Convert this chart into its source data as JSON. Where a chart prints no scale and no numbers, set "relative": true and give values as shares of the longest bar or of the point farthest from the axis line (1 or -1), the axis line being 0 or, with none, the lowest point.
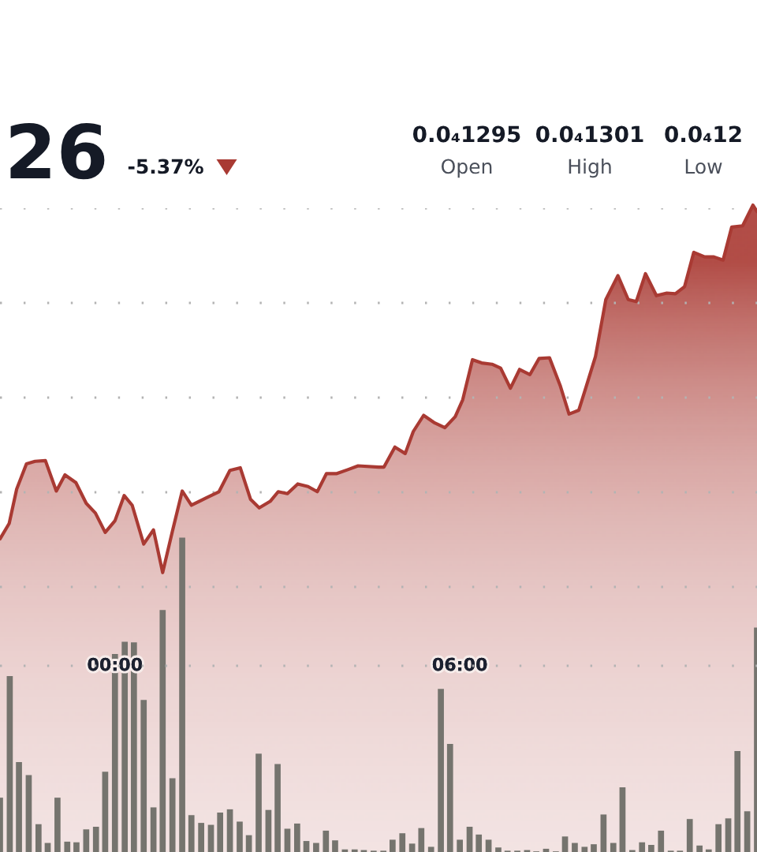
{
  "chart_data": {
    "type": "area",
    "relative": true,
    "xlim": [
      -2,
      11.17
    ],
    "xticks": [
      {
        "value": 0,
        "label": "00:00"
      },
      {
        "value": 6,
        "label": "06:00"
      }
    ],
    "grid": "y",
    "tick_labels": "x",
    "annotations": [
      "26",
      "-5.37%",
      "0.0₄1295",
      "Open",
      "0.0₄1301",
      "High",
      "0.0₄12",
      "Low"
    ],
    "series": [
      {
        "color": "#a93a33",
        "x": [
          -2,
          -1.84,
          -1.71,
          -1.54,
          -1.39,
          -1.21,
          -1.02,
          -0.87,
          -0.68,
          -0.5,
          -0.34,
          -0.17,
          0,
          0.16,
          0.3,
          0.5,
          0.67,
          0.83,
          1,
          1.17,
          1.33,
          1.58,
          1.81,
          2,
          2.18,
          2.36,
          2.51,
          2.7,
          2.84,
          3,
          3.18,
          3.36,
          3.52,
          3.68,
          3.86,
          4.05,
          4.23,
          4.59,
          4.68,
          4.87,
          5.05,
          5.19,
          5.37,
          5.55,
          5.74,
          5.92,
          6.05,
          6.22,
          6.38,
          6.56,
          6.71,
          6.88,
          7.04,
          7.22,
          7.38,
          7.56,
          7.75,
          7.9,
          8.07,
          8.2,
          8.36,
          8.54,
          8.75,
          8.93,
          9.07,
          9.23,
          9.42,
          9.6,
          9.75,
          9.91,
          10.07,
          10.26,
          10.42,
          10.58,
          10.73,
          10.92,
          11.1,
          11.17
        ],
        "values": [
          0.484,
          0.508,
          0.561,
          0.6,
          0.604,
          0.605,
          0.558,
          0.583,
          0.571,
          0.539,
          0.524,
          0.494,
          0.512,
          0.551,
          0.536,
          0.476,
          0.498,
          0.432,
          0.496,
          0.558,
          0.536,
          0.547,
          0.557,
          0.59,
          0.594,
          0.545,
          0.532,
          0.542,
          0.557,
          0.554,
          0.569,
          0.565,
          0.557,
          0.585,
          0.585,
          0.591,
          0.597,
          0.595,
          0.595,
          0.626,
          0.616,
          0.65,
          0.675,
          0.664,
          0.656,
          0.673,
          0.699,
          0.761,
          0.756,
          0.754,
          0.748,
          0.717,
          0.746,
          0.738,
          0.763,
          0.764,
          0.72,
          0.677,
          0.683,
          0.72,
          0.766,
          0.854,
          0.891,
          0.854,
          0.851,
          0.894,
          0.86,
          0.864,
          0.863,
          0.874,
          0.927,
          0.92,
          0.92,
          0.915,
          0.966,
          0.968,
          1,
          0.99
        ]
      },
      {
        "type": "bar",
        "color": "#75746e",
        "x": [
          -2,
          -1.83,
          -1.67,
          -1.5,
          -1.33,
          -1.17,
          -1,
          -0.83,
          -0.67,
          -0.5,
          -0.33,
          -0.17,
          0,
          0.17,
          0.33,
          0.5,
          0.67,
          0.83,
          1,
          1.17,
          1.33,
          1.5,
          1.67,
          1.83,
          2,
          2.17,
          2.33,
          2.5,
          2.67,
          2.83,
          3,
          3.17,
          3.33,
          3.5,
          3.67,
          3.83,
          4,
          4.17,
          4.33,
          4.5,
          4.67,
          4.83,
          5,
          5.17,
          5.33,
          5.5,
          5.67,
          5.83,
          6,
          6.17,
          6.33,
          6.5,
          6.67,
          6.83,
          7,
          7.17,
          7.33,
          7.5,
          7.67,
          7.83,
          8,
          8.17,
          8.33,
          8.5,
          8.67,
          8.83,
          9,
          9.17,
          9.33,
          9.5,
          9.67,
          9.83,
          10,
          10.17,
          10.33,
          10.5,
          10.67,
          10.83,
          11,
          11.17
        ],
        "values": [
          0.084,
          0.272,
          0.139,
          0.119,
          0.043,
          0.014,
          0.084,
          0.016,
          0.015,
          0.035,
          0.039,
          0.124,
          0.306,
          0.325,
          0.324,
          0.235,
          0.069,
          0.374,
          0.114,
          0.486,
          0.057,
          0.045,
          0.042,
          0.061,
          0.066,
          0.047,
          0.026,
          0.152,
          0.065,
          0.136,
          0.036,
          0.044,
          0.017,
          0.014,
          0.033,
          0.018,
          0.004,
          0.004,
          0.003,
          0.002,
          0.002,
          0.019,
          0.029,
          0.013,
          0.037,
          0.008,
          0.252,
          0.167,
          0.019,
          0.039,
          0.027,
          0.019,
          0.007,
          0.002,
          0.002,
          0.003,
          0.001,
          0.005,
          0.001,
          0.024,
          0.014,
          0.008,
          0.012,
          0.058,
          0.014,
          0.1,
          0.003,
          0.015,
          0.011,
          0.033,
          0.002,
          0.002,
          0.051,
          0.01,
          0.004,
          0.043,
          0.052,
          0.156,
          0.063,
          0.347
        ]
      }
    ]
  }
}
